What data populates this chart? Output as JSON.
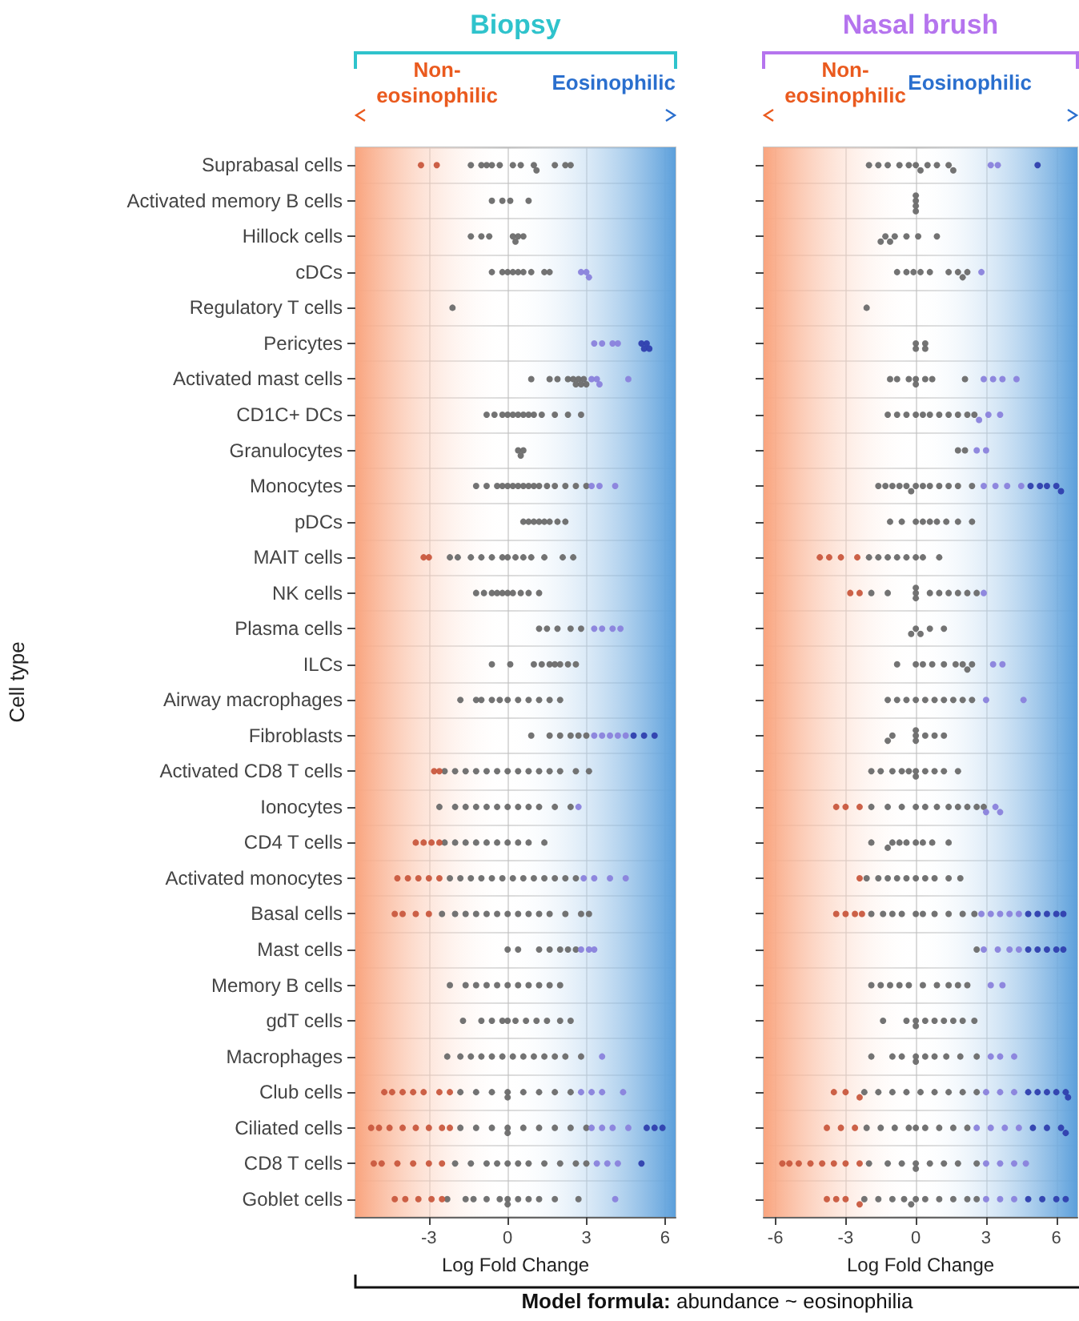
{
  "chart_data": [
    {
      "type": "scatter",
      "orientation": "horizontal",
      "title": "Biopsy",
      "xlabel": "Log Fold Change",
      "ylabel": "Cell type",
      "annotations": [
        "Non-eosinophilic",
        "Eosinophilic",
        "Model formula: abundance ~ eosinophilia"
      ],
      "categories": [
        "Suprabasal cells",
        "Activated memory B cells",
        "Hillock cells",
        "cDCs",
        "Regulatory T cells",
        "Pericytes",
        "Activated mast cells",
        "CD1C+ DCs",
        "Granulocytes",
        "Monocytes",
        "pDCs",
        "MAIT cells",
        "NK cells",
        "Plasma cells",
        "ILCs",
        "Airway macrophages",
        "Fibroblasts",
        "Activated CD8 T cells",
        "Ionocytes",
        "CD4 T cells",
        "Activated monocytes",
        "Basal cells",
        "Mast cells",
        "Memory B cells",
        "gdT cells",
        "Macrophages",
        "Club cells",
        "Ciliated cells",
        "CD8 T cells",
        "Goblet cells"
      ],
      "xlim": [
        -5.8,
        6.4
      ],
      "xticks": [
        -3,
        0,
        3,
        6
      ],
      "grid": true,
      "marker": "circle",
      "bands": [
        {
          "axis": "x",
          "from": -5.8,
          "to": 0,
          "color": "#f9a47e"
        },
        {
          "axis": "x",
          "from": 0,
          "to": 6.4,
          "color": "#5b9fdb"
        }
      ],
      "series": [
        {
          "color": "#6b6b6b",
          "x": [
            "Suprabasal cells",
            "Suprabasal cells",
            "Suprabasal cells",
            "Suprabasal cells",
            "Suprabasal cells",
            "Suprabasal cells",
            "Suprabasal cells",
            "Suprabasal cells",
            "Suprabasal cells",
            "Suprabasal cells",
            "Suprabasal cells",
            "Suprabasal cells",
            "Activated memory B cells",
            "Activated memory B cells",
            "Activated memory B cells",
            "Activated memory B cells",
            "Hillock cells",
            "Hillock cells",
            "Hillock cells",
            "Hillock cells",
            "Hillock cells",
            "Hillock cells",
            "Hillock cells",
            "cDCs",
            "cDCs",
            "cDCs",
            "cDCs",
            "cDCs",
            "cDCs",
            "cDCs",
            "cDCs",
            "cDCs",
            "Regulatory T cells",
            "Activated mast cells",
            "Activated mast cells",
            "Activated mast cells",
            "Activated mast cells",
            "Activated mast cells",
            "Activated mast cells",
            "Activated mast cells",
            "Activated mast cells",
            "Activated mast cells",
            "Activated mast cells",
            "CD1C+ DCs",
            "CD1C+ DCs",
            "CD1C+ DCs",
            "CD1C+ DCs",
            "CD1C+ DCs",
            "CD1C+ DCs",
            "CD1C+ DCs",
            "CD1C+ DCs",
            "CD1C+ DCs",
            "CD1C+ DCs",
            "CD1C+ DCs",
            "CD1C+ DCs",
            "CD1C+ DCs",
            "Granulocytes",
            "Granulocytes",
            "Granulocytes",
            "Monocytes",
            "Monocytes",
            "Monocytes",
            "Monocytes",
            "Monocytes",
            "Monocytes",
            "Monocytes",
            "Monocytes",
            "Monocytes",
            "Monocytes",
            "Monocytes",
            "Monocytes",
            "Monocytes",
            "Monocytes",
            "Monocytes",
            "Monocytes",
            "pDCs",
            "pDCs",
            "pDCs",
            "pDCs",
            "pDCs",
            "pDCs",
            "pDCs",
            "pDCs",
            "MAIT cells",
            "MAIT cells",
            "MAIT cells",
            "MAIT cells",
            "MAIT cells",
            "MAIT cells",
            "MAIT cells",
            "MAIT cells",
            "MAIT cells",
            "MAIT cells",
            "MAIT cells",
            "MAIT cells",
            "MAIT cells",
            "NK cells",
            "NK cells",
            "NK cells",
            "NK cells",
            "NK cells",
            "NK cells",
            "NK cells",
            "NK cells",
            "NK cells",
            "NK cells",
            "Plasma cells",
            "Plasma cells",
            "Plasma cells",
            "Plasma cells",
            "Plasma cells",
            "ILCs",
            "ILCs",
            "ILCs",
            "ILCs",
            "ILCs",
            "ILCs",
            "ILCs",
            "ILCs",
            "ILCs",
            "Airway macrophages",
            "Airway macrophages",
            "Airway macrophages",
            "Airway macrophages",
            "Airway macrophages",
            "Airway macrophages",
            "Airway macrophages",
            "Airway macrophages",
            "Airway macrophages",
            "Airway macrophages",
            "Airway macrophages",
            "Fibroblasts",
            "Fibroblasts",
            "Fibroblasts",
            "Fibroblasts",
            "Fibroblasts",
            "Fibroblasts",
            "Activated CD8 T cells",
            "Activated CD8 T cells",
            "Activated CD8 T cells",
            "Activated CD8 T cells",
            "Activated CD8 T cells",
            "Activated CD8 T cells",
            "Activated CD8 T cells",
            "Activated CD8 T cells",
            "Activated CD8 T cells",
            "Activated CD8 T cells",
            "Activated CD8 T cells",
            "Activated CD8 T cells",
            "Activated CD8 T cells",
            "Activated CD8 T cells",
            "Ionocytes",
            "Ionocytes",
            "Ionocytes",
            "Ionocytes",
            "Ionocytes",
            "Ionocytes",
            "Ionocytes",
            "Ionocytes",
            "Ionocytes",
            "Ionocytes",
            "Ionocytes",
            "Ionocytes",
            "CD4 T cells",
            "CD4 T cells",
            "CD4 T cells",
            "CD4 T cells",
            "CD4 T cells",
            "CD4 T cells",
            "CD4 T cells",
            "CD4 T cells",
            "CD4 T cells",
            "CD4 T cells",
            "Activated monocytes",
            "Activated monocytes",
            "Activated monocytes",
            "Activated monocytes",
            "Activated monocytes",
            "Activated monocytes",
            "Activated monocytes",
            "Activated monocytes",
            "Activated monocytes",
            "Activated monocytes",
            "Activated monocytes",
            "Activated monocytes",
            "Activated monocytes",
            "Basal cells",
            "Basal cells",
            "Basal cells",
            "Basal cells",
            "Basal cells",
            "Basal cells",
            "Basal cells",
            "Basal cells",
            "Basal cells",
            "Basal cells",
            "Basal cells",
            "Basal cells",
            "Basal cells",
            "Basal cells",
            "Mast cells",
            "Mast cells",
            "Mast cells",
            "Mast cells",
            "Mast cells",
            "Mast cells",
            "Mast cells",
            "Memory B cells",
            "Memory B cells",
            "Memory B cells",
            "Memory B cells",
            "Memory B cells",
            "Memory B cells",
            "Memory B cells",
            "Memory B cells",
            "Memory B cells",
            "Memory B cells",
            "Memory B cells",
            "gdT cells",
            "gdT cells",
            "gdT cells",
            "gdT cells",
            "gdT cells",
            "gdT cells",
            "gdT cells",
            "gdT cells",
            "gdT cells",
            "gdT cells",
            "gdT cells",
            "Macrophages",
            "Macrophages",
            "Macrophages",
            "Macrophages",
            "Macrophages",
            "Macrophages",
            "Macrophages",
            "Macrophages",
            "Macrophages",
            "Macrophages",
            "Macrophages",
            "Macrophages",
            "Macrophages",
            "Club cells",
            "Club cells",
            "Club cells",
            "Club cells",
            "Club cells",
            "Club cells",
            "Club cells",
            "Club cells",
            "Club cells",
            "Ciliated cells",
            "Ciliated cells",
            "Ciliated cells",
            "Ciliated cells",
            "Ciliated cells",
            "Ciliated cells",
            "Ciliated cells",
            "Ciliated cells",
            "Ciliated cells",
            "Ciliated cells",
            "CD8 T cells",
            "CD8 T cells",
            "CD8 T cells",
            "CD8 T cells",
            "CD8 T cells",
            "CD8 T cells",
            "CD8 T cells",
            "CD8 T cells",
            "CD8 T cells",
            "CD8 T cells",
            "CD8 T cells",
            "Goblet cells",
            "Goblet cells",
            "Goblet cells",
            "Goblet cells",
            "Goblet cells",
            "Goblet cells",
            "Goblet cells",
            "Goblet cells",
            "Goblet cells",
            "Goblet cells",
            "Goblet cells",
            "Goblet cells"
          ],
          "values": [
            -1.4,
            -1.0,
            -0.8,
            -0.6,
            -0.3,
            0.2,
            0.5,
            1.0,
            1.1,
            1.8,
            2.2,
            2.4,
            -0.6,
            -0.2,
            0.1,
            0.8,
            -1.4,
            -1.0,
            -0.7,
            0.2,
            0.4,
            0.6,
            0.3,
            -0.6,
            -0.2,
            0,
            0.2,
            0.4,
            0.6,
            0.9,
            1.4,
            1.6,
            -2.1,
            0.9,
            1.6,
            1.9,
            2.3,
            2.5,
            2.6,
            2.7,
            2.8,
            2.9,
            3.0,
            -0.8,
            -0.5,
            -0.2,
            0,
            0.2,
            0.4,
            0.6,
            0.8,
            1.0,
            1.3,
            1.8,
            2.3,
            2.8,
            0.4,
            0.5,
            0.6,
            -1.2,
            -0.8,
            -0.4,
            -0.2,
            0,
            0.2,
            0.4,
            0.6,
            0.8,
            1.0,
            1.2,
            1.5,
            1.8,
            2.2,
            2.6,
            3.0,
            0.6,
            0.8,
            1.0,
            1.2,
            1.4,
            1.6,
            1.9,
            2.2,
            -2.2,
            -1.9,
            -1.4,
            -1.0,
            -0.6,
            -0.2,
            0,
            0.3,
            0.6,
            0.9,
            1.4,
            2.1,
            2.5,
            -1.2,
            -0.9,
            -0.6,
            -0.4,
            -0.2,
            0,
            0.2,
            0.5,
            0.8,
            1.2,
            1.2,
            1.5,
            1.9,
            2.4,
            2.8,
            -0.6,
            0.1,
            1.0,
            1.3,
            1.6,
            1.8,
            2.0,
            2.3,
            2.6,
            -1.8,
            -1.2,
            -1.0,
            -0.6,
            -0.3,
            0,
            0.4,
            0.8,
            1.2,
            1.6,
            2.0,
            0.9,
            1.6,
            2.0,
            2.4,
            2.7,
            3.0,
            -2.4,
            -2.0,
            -1.6,
            -1.2,
            -0.8,
            -0.4,
            0,
            0.4,
            0.8,
            1.2,
            1.6,
            2.0,
            2.6,
            3.1,
            -2.6,
            -2.0,
            -1.6,
            -1.2,
            -0.8,
            -0.4,
            0,
            0.4,
            0.8,
            1.2,
            1.8,
            2.4,
            -2.4,
            -2.0,
            -1.6,
            -1.2,
            -0.8,
            -0.4,
            0,
            0.4,
            0.8,
            1.4,
            -2.2,
            -1.8,
            -1.4,
            -1.0,
            -0.6,
            -0.2,
            0.2,
            0.6,
            1.0,
            1.4,
            1.8,
            2.2,
            2.6,
            -2.5,
            -2.0,
            -1.6,
            -1.2,
            -0.8,
            -0.4,
            0,
            0.4,
            0.8,
            1.2,
            1.6,
            2.2,
            2.8,
            3.1,
            0,
            0.4,
            1.2,
            1.6,
            2.0,
            2.3,
            2.6,
            -2.2,
            -1.6,
            -1.2,
            -0.8,
            -0.4,
            0,
            0.4,
            0.8,
            1.2,
            1.6,
            2.0,
            -1.7,
            -1.0,
            -0.6,
            -0.2,
            0,
            0.3,
            0.7,
            1.1,
            1.5,
            2.0,
            2.4,
            -2.3,
            -1.8,
            -1.4,
            -1.0,
            -0.6,
            -0.2,
            0.2,
            0.6,
            1.0,
            1.4,
            1.8,
            2.2,
            2.8,
            -1.8,
            -1.2,
            -0.6,
            0,
            0,
            0.6,
            1.2,
            1.8,
            2.4,
            -1.8,
            -1.2,
            -0.6,
            0,
            0,
            0.6,
            1.2,
            1.8,
            2.4,
            3.0,
            -2.0,
            -1.4,
            -0.8,
            -0.4,
            0,
            0.4,
            0.8,
            1.4,
            2.0,
            2.6,
            3.0,
            -2.3,
            -1.6,
            -1.3,
            -0.8,
            -0.3,
            0,
            0,
            0.4,
            0.8,
            1.2,
            1.8,
            2.7
          ]
        },
        {
          "color": "#c9583e",
          "x": [
            "Suprabasal cells",
            "Suprabasal cells",
            "MAIT cells",
            "MAIT cells",
            "Activated CD8 T cells",
            "Activated CD8 T cells",
            "CD4 T cells",
            "CD4 T cells",
            "CD4 T cells",
            "CD4 T cells",
            "Activated monocytes",
            "Activated monocytes",
            "Activated monocytes",
            "Activated monocytes",
            "Activated monocytes",
            "Basal cells",
            "Basal cells",
            "Basal cells",
            "Basal cells",
            "Club cells",
            "Club cells",
            "Club cells",
            "Club cells",
            "Club cells",
            "Club cells",
            "Club cells",
            "Ciliated cells",
            "Ciliated cells",
            "Ciliated cells",
            "Ciliated cells",
            "Ciliated cells",
            "Ciliated cells",
            "Ciliated cells",
            "Ciliated cells",
            "CD8 T cells",
            "CD8 T cells",
            "CD8 T cells",
            "CD8 T cells",
            "CD8 T cells",
            "CD8 T cells",
            "Goblet cells",
            "Goblet cells",
            "Goblet cells",
            "Goblet cells",
            "Goblet cells"
          ],
          "values": [
            -3.3,
            -2.7,
            -3.2,
            -3.0,
            -2.8,
            -2.6,
            -3.5,
            -3.2,
            -2.9,
            -2.6,
            -4.2,
            -3.8,
            -3.4,
            -3.0,
            -2.6,
            -4.3,
            -4.0,
            -3.5,
            -3.0,
            -4.7,
            -4.4,
            -4.0,
            -3.6,
            -3.2,
            -2.6,
            -2.2,
            -5.2,
            -4.9,
            -4.5,
            -4.0,
            -3.5,
            -3.0,
            -2.5,
            -2.2,
            -5.1,
            -4.8,
            -4.2,
            -3.6,
            -3.0,
            -2.5,
            -4.3,
            -3.9,
            -3.4,
            -2.9,
            -2.5
          ]
        },
        {
          "color": "#8a82dc",
          "x": [
            "cDCs",
            "cDCs",
            "cDCs",
            "Pericytes",
            "Pericytes",
            "Pericytes",
            "Pericytes",
            "Activated mast cells",
            "Activated mast cells",
            "Activated mast cells",
            "Activated mast cells",
            "Monocytes",
            "Monocytes",
            "Monocytes",
            "Plasma cells",
            "Plasma cells",
            "Plasma cells",
            "Plasma cells",
            "Fibroblasts",
            "Fibroblasts",
            "Fibroblasts",
            "Fibroblasts",
            "Fibroblasts",
            "Ionocytes",
            "Activated monocytes",
            "Activated monocytes",
            "Activated monocytes",
            "Activated monocytes",
            "Mast cells",
            "Mast cells",
            "Mast cells",
            "Macrophages",
            "Club cells",
            "Club cells",
            "Club cells",
            "Club cells",
            "Ciliated cells",
            "Ciliated cells",
            "Ciliated cells",
            "Ciliated cells",
            "CD8 T cells",
            "CD8 T cells",
            "CD8 T cells",
            "Goblet cells"
          ],
          "values": [
            2.8,
            3.0,
            3.1,
            3.3,
            3.6,
            4.0,
            4.2,
            3.2,
            3.4,
            3.5,
            4.6,
            3.2,
            3.5,
            4.1,
            3.3,
            3.6,
            4.0,
            4.3,
            3.3,
            3.6,
            3.9,
            4.2,
            4.5,
            2.7,
            2.9,
            3.3,
            3.9,
            4.5,
            2.8,
            3.1,
            3.3,
            3.6,
            2.8,
            3.2,
            3.6,
            4.4,
            3.2,
            3.6,
            4.0,
            4.6,
            3.4,
            3.8,
            4.2,
            4.1
          ]
        },
        {
          "color": "#2f3fae",
          "x": [
            "Pericytes",
            "Pericytes",
            "Pericytes",
            "Pericytes",
            "Fibroblasts",
            "Fibroblasts",
            "Fibroblasts",
            "Ciliated cells",
            "Ciliated cells",
            "Ciliated cells",
            "CD8 T cells"
          ],
          "values": [
            5.1,
            5.2,
            5.3,
            5.4,
            4.8,
            5.2,
            5.6,
            5.3,
            5.6,
            5.9,
            5.1
          ]
        }
      ]
    },
    {
      "type": "scatter",
      "orientation": "horizontal",
      "title": "Nasal brush",
      "xlabel": "Log Fold Change",
      "tick_labels": "x",
      "annotations": [
        "Non-eosinophilic",
        "Eosinophilic"
      ],
      "categories": [
        "Suprabasal cells",
        "Activated memory B cells",
        "Hillock cells",
        "cDCs",
        "Regulatory T cells",
        "Pericytes",
        "Activated mast cells",
        "CD1C+ DCs",
        "Granulocytes",
        "Monocytes",
        "pDCs",
        "MAIT cells",
        "NK cells",
        "Plasma cells",
        "ILCs",
        "Airway macrophages",
        "Fibroblasts",
        "Activated CD8 T cells",
        "Ionocytes",
        "CD4 T cells",
        "Activated monocytes",
        "Basal cells",
        "Mast cells",
        "Memory B cells",
        "gdT cells",
        "Macrophages",
        "Club cells",
        "Ciliated cells",
        "CD8 T cells",
        "Goblet cells"
      ],
      "xlim": [
        -6.5,
        6.9
      ],
      "xticks": [
        -6,
        -3,
        0,
        3,
        6
      ],
      "grid": true,
      "marker": "circle",
      "bands": [
        {
          "axis": "x",
          "from": -6.5,
          "to": 0,
          "color": "#f9a47e"
        },
        {
          "axis": "x",
          "from": 0,
          "to": 6.9,
          "color": "#5b9fdb"
        }
      ],
      "series": [
        {
          "color": "#6b6b6b",
          "x": [
            "Suprabasal cells",
            "Suprabasal cells",
            "Suprabasal cells",
            "Suprabasal cells",
            "Suprabasal cells",
            "Suprabasal cells",
            "Suprabasal cells",
            "Suprabasal cells",
            "Suprabasal cells",
            "Suprabasal cells",
            "Suprabasal cells",
            "Activated memory B cells",
            "Activated memory B cells",
            "Activated memory B cells",
            "Activated memory B cells",
            "Hillock cells",
            "Hillock cells",
            "Hillock cells",
            "Hillock cells",
            "Hillock cells",
            "Hillock cells",
            "Hillock cells",
            "cDCs",
            "cDCs",
            "cDCs",
            "cDCs",
            "cDCs",
            "cDCs",
            "cDCs",
            "cDCs",
            "cDCs",
            "Regulatory T cells",
            "Pericytes",
            "Pericytes",
            "Pericytes",
            "Pericytes",
            "Activated mast cells",
            "Activated mast cells",
            "Activated mast cells",
            "Activated mast cells",
            "Activated mast cells",
            "Activated mast cells",
            "Activated mast cells",
            "Activated mast cells",
            "CD1C+ DCs",
            "CD1C+ DCs",
            "CD1C+ DCs",
            "CD1C+ DCs",
            "CD1C+ DCs",
            "CD1C+ DCs",
            "CD1C+ DCs",
            "CD1C+ DCs",
            "CD1C+ DCs",
            "CD1C+ DCs",
            "CD1C+ DCs",
            "Granulocytes",
            "Granulocytes",
            "Monocytes",
            "Monocytes",
            "Monocytes",
            "Monocytes",
            "Monocytes",
            "Monocytes",
            "Monocytes",
            "Monocytes",
            "Monocytes",
            "Monocytes",
            "Monocytes",
            "Monocytes",
            "Monocytes",
            "pDCs",
            "pDCs",
            "pDCs",
            "pDCs",
            "pDCs",
            "pDCs",
            "pDCs",
            "pDCs",
            "pDCs",
            "MAIT cells",
            "MAIT cells",
            "MAIT cells",
            "MAIT cells",
            "MAIT cells",
            "MAIT cells",
            "MAIT cells",
            "MAIT cells",
            "NK cells",
            "NK cells",
            "NK cells",
            "NK cells",
            "NK cells",
            "NK cells",
            "NK cells",
            "NK cells",
            "NK cells",
            "NK cells",
            "NK cells",
            "Plasma cells",
            "Plasma cells",
            "Plasma cells",
            "Plasma cells",
            "Plasma cells",
            "ILCs",
            "ILCs",
            "ILCs",
            "ILCs",
            "ILCs",
            "ILCs",
            "ILCs",
            "ILCs",
            "ILCs",
            "Airway macrophages",
            "Airway macrophages",
            "Airway macrophages",
            "Airway macrophages",
            "Airway macrophages",
            "Airway macrophages",
            "Airway macrophages",
            "Airway macrophages",
            "Airway macrophages",
            "Airway macrophages",
            "Fibroblasts",
            "Fibroblasts",
            "Fibroblasts",
            "Fibroblasts",
            "Fibroblasts",
            "Fibroblasts",
            "Fibroblasts",
            "Fibroblasts",
            "Activated CD8 T cells",
            "Activated CD8 T cells",
            "Activated CD8 T cells",
            "Activated CD8 T cells",
            "Activated CD8 T cells",
            "Activated CD8 T cells",
            "Activated CD8 T cells",
            "Activated CD8 T cells",
            "Activated CD8 T cells",
            "Activated CD8 T cells",
            "Activated CD8 T cells",
            "Ionocytes",
            "Ionocytes",
            "Ionocytes",
            "Ionocytes",
            "Ionocytes",
            "Ionocytes",
            "Ionocytes",
            "Ionocytes",
            "Ionocytes",
            "Ionocytes",
            "Ionocytes",
            "CD4 T cells",
            "CD4 T cells",
            "CD4 T cells",
            "CD4 T cells",
            "CD4 T cells",
            "CD4 T cells",
            "CD4 T cells",
            "CD4 T cells",
            "CD4 T cells",
            "Activated monocytes",
            "Activated monocytes",
            "Activated monocytes",
            "Activated monocytes",
            "Activated monocytes",
            "Activated monocytes",
            "Activated monocytes",
            "Activated monocytes",
            "Activated monocytes",
            "Activated monocytes",
            "Basal cells",
            "Basal cells",
            "Basal cells",
            "Basal cells",
            "Basal cells",
            "Basal cells",
            "Basal cells",
            "Basal cells",
            "Basal cells",
            "Basal cells",
            "Mast cells",
            "Memory B cells",
            "Memory B cells",
            "Memory B cells",
            "Memory B cells",
            "Memory B cells",
            "Memory B cells",
            "Memory B cells",
            "Memory B cells",
            "Memory B cells",
            "Memory B cells",
            "gdT cells",
            "gdT cells",
            "gdT cells",
            "gdT cells",
            "gdT cells",
            "gdT cells",
            "gdT cells",
            "gdT cells",
            "gdT cells",
            "gdT cells",
            "Macrophages",
            "Macrophages",
            "Macrophages",
            "Macrophages",
            "Macrophages",
            "Macrophages",
            "Macrophages",
            "Macrophages",
            "Macrophages",
            "Macrophages",
            "Club cells",
            "Club cells",
            "Club cells",
            "Club cells",
            "Club cells",
            "Club cells",
            "Club cells",
            "Club cells",
            "Club cells",
            "Ciliated cells",
            "Ciliated cells",
            "Ciliated cells",
            "Ciliated cells",
            "Ciliated cells",
            "Ciliated cells",
            "Ciliated cells",
            "Ciliated cells",
            "Ciliated cells",
            "CD8 T cells",
            "CD8 T cells",
            "CD8 T cells",
            "CD8 T cells",
            "CD8 T cells",
            "CD8 T cells",
            "CD8 T cells",
            "CD8 T cells",
            "CD8 T cells",
            "Goblet cells",
            "Goblet cells",
            "Goblet cells",
            "Goblet cells",
            "Goblet cells",
            "Goblet cells",
            "Goblet cells",
            "Goblet cells",
            "Goblet cells",
            "Goblet cells",
            "Goblet cells"
          ],
          "values": [
            -2.0,
            -1.6,
            -1.2,
            -0.7,
            -0.3,
            0,
            0.2,
            0.5,
            0.9,
            1.4,
            1.6,
            0,
            0,
            0,
            0,
            -1.5,
            -1.3,
            -1.1,
            -0.9,
            -0.4,
            0.1,
            0.9,
            -0.8,
            -0.4,
            -0.1,
            0.2,
            0.6,
            1.4,
            1.8,
            2.0,
            2.2,
            -2.1,
            0,
            0.4,
            0,
            0.4,
            -1.1,
            -0.8,
            -0.3,
            0,
            0,
            0.4,
            0.7,
            2.1,
            -1.2,
            -0.8,
            -0.4,
            0,
            0.3,
            0.6,
            1.0,
            1.4,
            1.8,
            2.2,
            2.5,
            1.8,
            2.1,
            -1.6,
            -1.3,
            -1.0,
            -0.7,
            -0.4,
            -0.2,
            0,
            0.3,
            0.6,
            1.0,
            1.4,
            1.8,
            2.4,
            -1.1,
            -0.6,
            0,
            0.3,
            0.6,
            0.9,
            1.3,
            1.8,
            2.4,
            -2.0,
            -1.6,
            -1.2,
            -0.8,
            -0.4,
            0,
            0.3,
            1.0,
            -1.9,
            -1.2,
            0,
            0,
            0,
            0.6,
            1.0,
            1.4,
            1.8,
            2.2,
            2.6,
            -0.2,
            0,
            0.2,
            0.6,
            1.2,
            -0.8,
            0,
            0.3,
            0.7,
            1.2,
            1.7,
            2.0,
            2.2,
            2.4,
            -1.2,
            -0.8,
            -0.4,
            0,
            0.4,
            0.8,
            1.2,
            1.6,
            2.0,
            2.4,
            -1.2,
            -1.0,
            0,
            0,
            0,
            0.4,
            0.8,
            1.2,
            -1.9,
            -1.5,
            -1.0,
            -0.6,
            -0.3,
            0,
            0,
            0.4,
            0.8,
            1.2,
            1.8,
            -1.9,
            -1.2,
            -0.6,
            0,
            0.4,
            0.9,
            1.4,
            1.8,
            2.2,
            2.6,
            2.9,
            -1.9,
            -1.2,
            -1.0,
            -0.7,
            -0.4,
            0,
            0.3,
            0.7,
            1.4,
            -2.1,
            -1.6,
            -1.2,
            -0.8,
            -0.4,
            0,
            0.4,
            0.8,
            1.4,
            1.9,
            -1.9,
            -1.4,
            -1.0,
            -0.6,
            0,
            0.3,
            0.8,
            1.4,
            2.0,
            2.5,
            2.6,
            -1.9,
            -1.5,
            -1.1,
            -0.7,
            -0.3,
            0.3,
            0.9,
            1.4,
            1.8,
            2.2,
            -1.4,
            -0.4,
            0,
            0,
            0.4,
            0.8,
            1.2,
            1.6,
            2.0,
            2.5,
            -1.9,
            -1.0,
            -0.6,
            0,
            0,
            0.4,
            0.8,
            1.3,
            1.9,
            2.6,
            -2.2,
            -1.6,
            -1.0,
            -0.4,
            0.2,
            0.8,
            1.4,
            2.0,
            2.6,
            -2.1,
            -1.5,
            -0.9,
            -0.3,
            0,
            0.4,
            1.0,
            1.6,
            2.2,
            -2.0,
            -1.2,
            -0.6,
            0,
            0,
            0.6,
            1.2,
            1.8,
            2.6,
            -2.2,
            -1.6,
            -1.0,
            -0.5,
            -0.2,
            0,
            0.4,
            1.0,
            1.6,
            2.2,
            2.6
          ]
        },
        {
          "color": "#c9583e",
          "x": [
            "MAIT cells",
            "MAIT cells",
            "MAIT cells",
            "MAIT cells",
            "NK cells",
            "NK cells",
            "Ionocytes",
            "Ionocytes",
            "Ionocytes",
            "Activated monocytes",
            "Basal cells",
            "Basal cells",
            "Basal cells",
            "Basal cells",
            "Club cells",
            "Club cells",
            "Club cells",
            "Ciliated cells",
            "Ciliated cells",
            "Ciliated cells",
            "CD8 T cells",
            "CD8 T cells",
            "CD8 T cells",
            "CD8 T cells",
            "CD8 T cells",
            "CD8 T cells",
            "CD8 T cells",
            "CD8 T cells",
            "Goblet cells",
            "Goblet cells",
            "Goblet cells",
            "Goblet cells"
          ],
          "values": [
            -4.1,
            -3.7,
            -3.2,
            -2.5,
            -2.8,
            -2.4,
            -3.4,
            -3.0,
            -2.4,
            -2.4,
            -3.4,
            -3.0,
            -2.6,
            -2.3,
            -3.5,
            -3.0,
            -2.4,
            -3.8,
            -3.2,
            -2.6,
            -5.7,
            -5.4,
            -5.0,
            -4.5,
            -4.0,
            -3.5,
            -3.0,
            -2.4,
            -3.8,
            -3.4,
            -3.0,
            -2.4
          ]
        },
        {
          "color": "#8a82dc",
          "x": [
            "Suprabasal cells",
            "Suprabasal cells",
            "cDCs",
            "Activated mast cells",
            "Activated mast cells",
            "Activated mast cells",
            "Activated mast cells",
            "CD1C+ DCs",
            "CD1C+ DCs",
            "CD1C+ DCs",
            "Granulocytes",
            "Granulocytes",
            "Monocytes",
            "Monocytes",
            "Monocytes",
            "Monocytes",
            "NK cells",
            "ILCs",
            "ILCs",
            "Airway macrophages",
            "Airway macrophages",
            "Ionocytes",
            "Ionocytes",
            "Ionocytes",
            "Basal cells",
            "Basal cells",
            "Basal cells",
            "Basal cells",
            "Basal cells",
            "Mast cells",
            "Mast cells",
            "Mast cells",
            "Mast cells",
            "Memory B cells",
            "Memory B cells",
            "Macrophages",
            "Macrophages",
            "Macrophages",
            "Club cells",
            "Club cells",
            "Club cells",
            "Ciliated cells",
            "Ciliated cells",
            "Ciliated cells",
            "Ciliated cells",
            "CD8 T cells",
            "CD8 T cells",
            "CD8 T cells",
            "CD8 T cells",
            "Goblet cells",
            "Goblet cells",
            "Goblet cells"
          ],
          "values": [
            3.2,
            3.5,
            2.8,
            2.9,
            3.3,
            3.7,
            4.3,
            2.7,
            3.1,
            3.6,
            2.6,
            3.0,
            2.9,
            3.4,
            3.9,
            4.5,
            2.9,
            3.3,
            3.7,
            3.0,
            4.6,
            3.0,
            3.4,
            3.6,
            2.8,
            3.2,
            3.6,
            4.0,
            4.4,
            2.9,
            3.5,
            4.0,
            4.4,
            3.2,
            3.7,
            3.2,
            3.6,
            4.2,
            3.0,
            3.6,
            4.2,
            2.6,
            3.2,
            3.8,
            4.4,
            3.0,
            3.6,
            4.2,
            4.7,
            3.0,
            3.6,
            4.2
          ]
        },
        {
          "color": "#2f3fae",
          "x": [
            "Suprabasal cells",
            "Monocytes",
            "Monocytes",
            "Monocytes",
            "Monocytes",
            "Monocytes",
            "Basal cells",
            "Basal cells",
            "Basal cells",
            "Basal cells",
            "Basal cells",
            "Mast cells",
            "Mast cells",
            "Mast cells",
            "Mast cells",
            "Mast cells",
            "Club cells",
            "Club cells",
            "Club cells",
            "Club cells",
            "Club cells",
            "Club cells",
            "Ciliated cells",
            "Ciliated cells",
            "Ciliated cells",
            "Ciliated cells",
            "Goblet cells",
            "Goblet cells",
            "Goblet cells",
            "Goblet cells"
          ],
          "values": [
            5.2,
            4.9,
            5.3,
            5.6,
            6.0,
            6.2,
            4.8,
            5.2,
            5.6,
            6.0,
            6.3,
            4.8,
            5.2,
            5.6,
            6.0,
            6.3,
            4.8,
            5.2,
            5.6,
            6.0,
            6.4,
            6.5,
            5.0,
            5.6,
            6.2,
            6.4,
            4.8,
            5.4,
            6.0,
            6.4
          ]
        }
      ]
    }
  ]
}
